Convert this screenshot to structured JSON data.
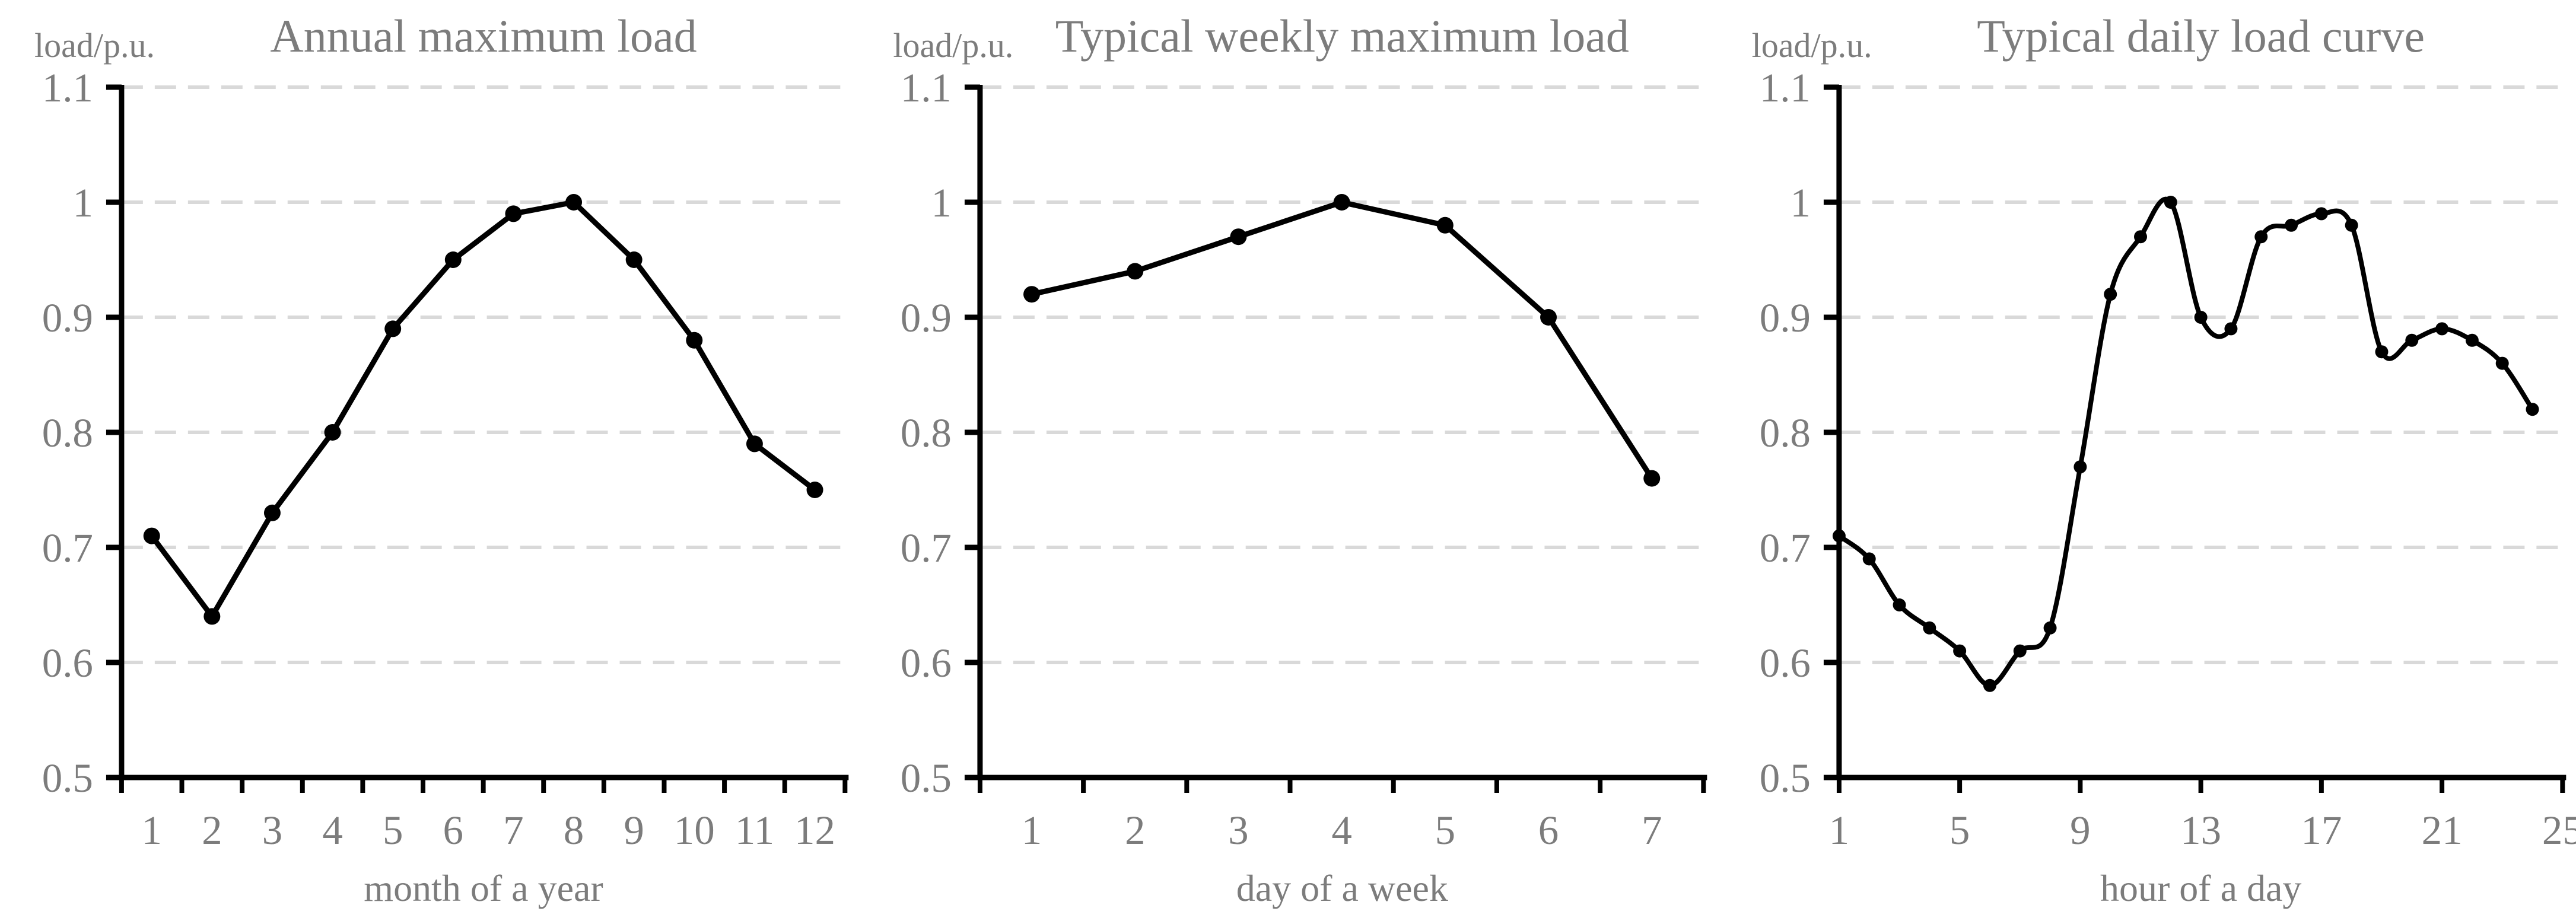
{
  "figure": {
    "background": "#ffffff",
    "text_color": "#7c7c7c",
    "grid_color": "#d9d9d9",
    "axis_color": "#000000",
    "series_color": "#000000",
    "marker_color": "#000000"
  },
  "chart_data": [
    {
      "type": "line",
      "title": "Annual maximum load",
      "ylabel": "load/p.u.",
      "xlabel": "month of a year",
      "x_mode": "category",
      "smooth": false,
      "categories": [
        "1",
        "2",
        "3",
        "4",
        "5",
        "6",
        "7",
        "8",
        "9",
        "10",
        "11",
        "12"
      ],
      "values": [
        0.71,
        0.64,
        0.73,
        0.8,
        0.89,
        0.95,
        0.99,
        1.0,
        0.95,
        0.88,
        0.79,
        0.75
      ],
      "ylim": [
        0.5,
        1.1
      ],
      "y_tick_labels": [
        "1.1",
        "1",
        "0.9",
        "0.8",
        "0.7",
        "0.6",
        "0.5"
      ],
      "grid": "horizontal-dashed",
      "legend": "none",
      "marker": "circle"
    },
    {
      "type": "line",
      "title": "Typical weekly maximum load",
      "ylabel": "load/p.u.",
      "xlabel": "day of a week",
      "x_mode": "category",
      "smooth": false,
      "categories": [
        "1",
        "2",
        "3",
        "4",
        "5",
        "6",
        "7"
      ],
      "values": [
        0.92,
        0.94,
        0.97,
        1.0,
        0.98,
        0.9,
        0.76
      ],
      "ylim": [
        0.5,
        1.1
      ],
      "y_tick_labels": [
        "1.1",
        "1",
        "0.9",
        "0.8",
        "0.7",
        "0.6",
        "0.5"
      ],
      "grid": "horizontal-dashed",
      "legend": "none",
      "marker": "circle"
    },
    {
      "type": "line",
      "title": "Typical daily load curve",
      "ylabel": "load/p.u.",
      "xlabel": "hour of a day",
      "x_mode": "value",
      "smooth": true,
      "x": [
        1,
        2,
        3,
        4,
        5,
        6,
        7,
        8,
        9,
        10,
        11,
        12,
        13,
        14,
        15,
        16,
        17,
        18,
        19,
        20,
        21,
        22,
        23,
        24
      ],
      "x_range": [
        1,
        25
      ],
      "x_tick_labels": [
        "1",
        "5",
        "9",
        "13",
        "17",
        "21",
        "25"
      ],
      "values": [
        0.71,
        0.69,
        0.65,
        0.63,
        0.61,
        0.58,
        0.61,
        0.63,
        0.77,
        0.92,
        0.97,
        1.0,
        0.9,
        0.89,
        0.97,
        0.98,
        0.99,
        0.98,
        0.87,
        0.88,
        0.89,
        0.88,
        0.86,
        0.82
      ],
      "ylim": [
        0.5,
        1.1
      ],
      "y_tick_labels": [
        "1.1",
        "1",
        "0.9",
        "0.8",
        "0.7",
        "0.6",
        "0.5"
      ],
      "grid": "horizontal-dashed",
      "legend": "none",
      "marker": "circle"
    }
  ]
}
